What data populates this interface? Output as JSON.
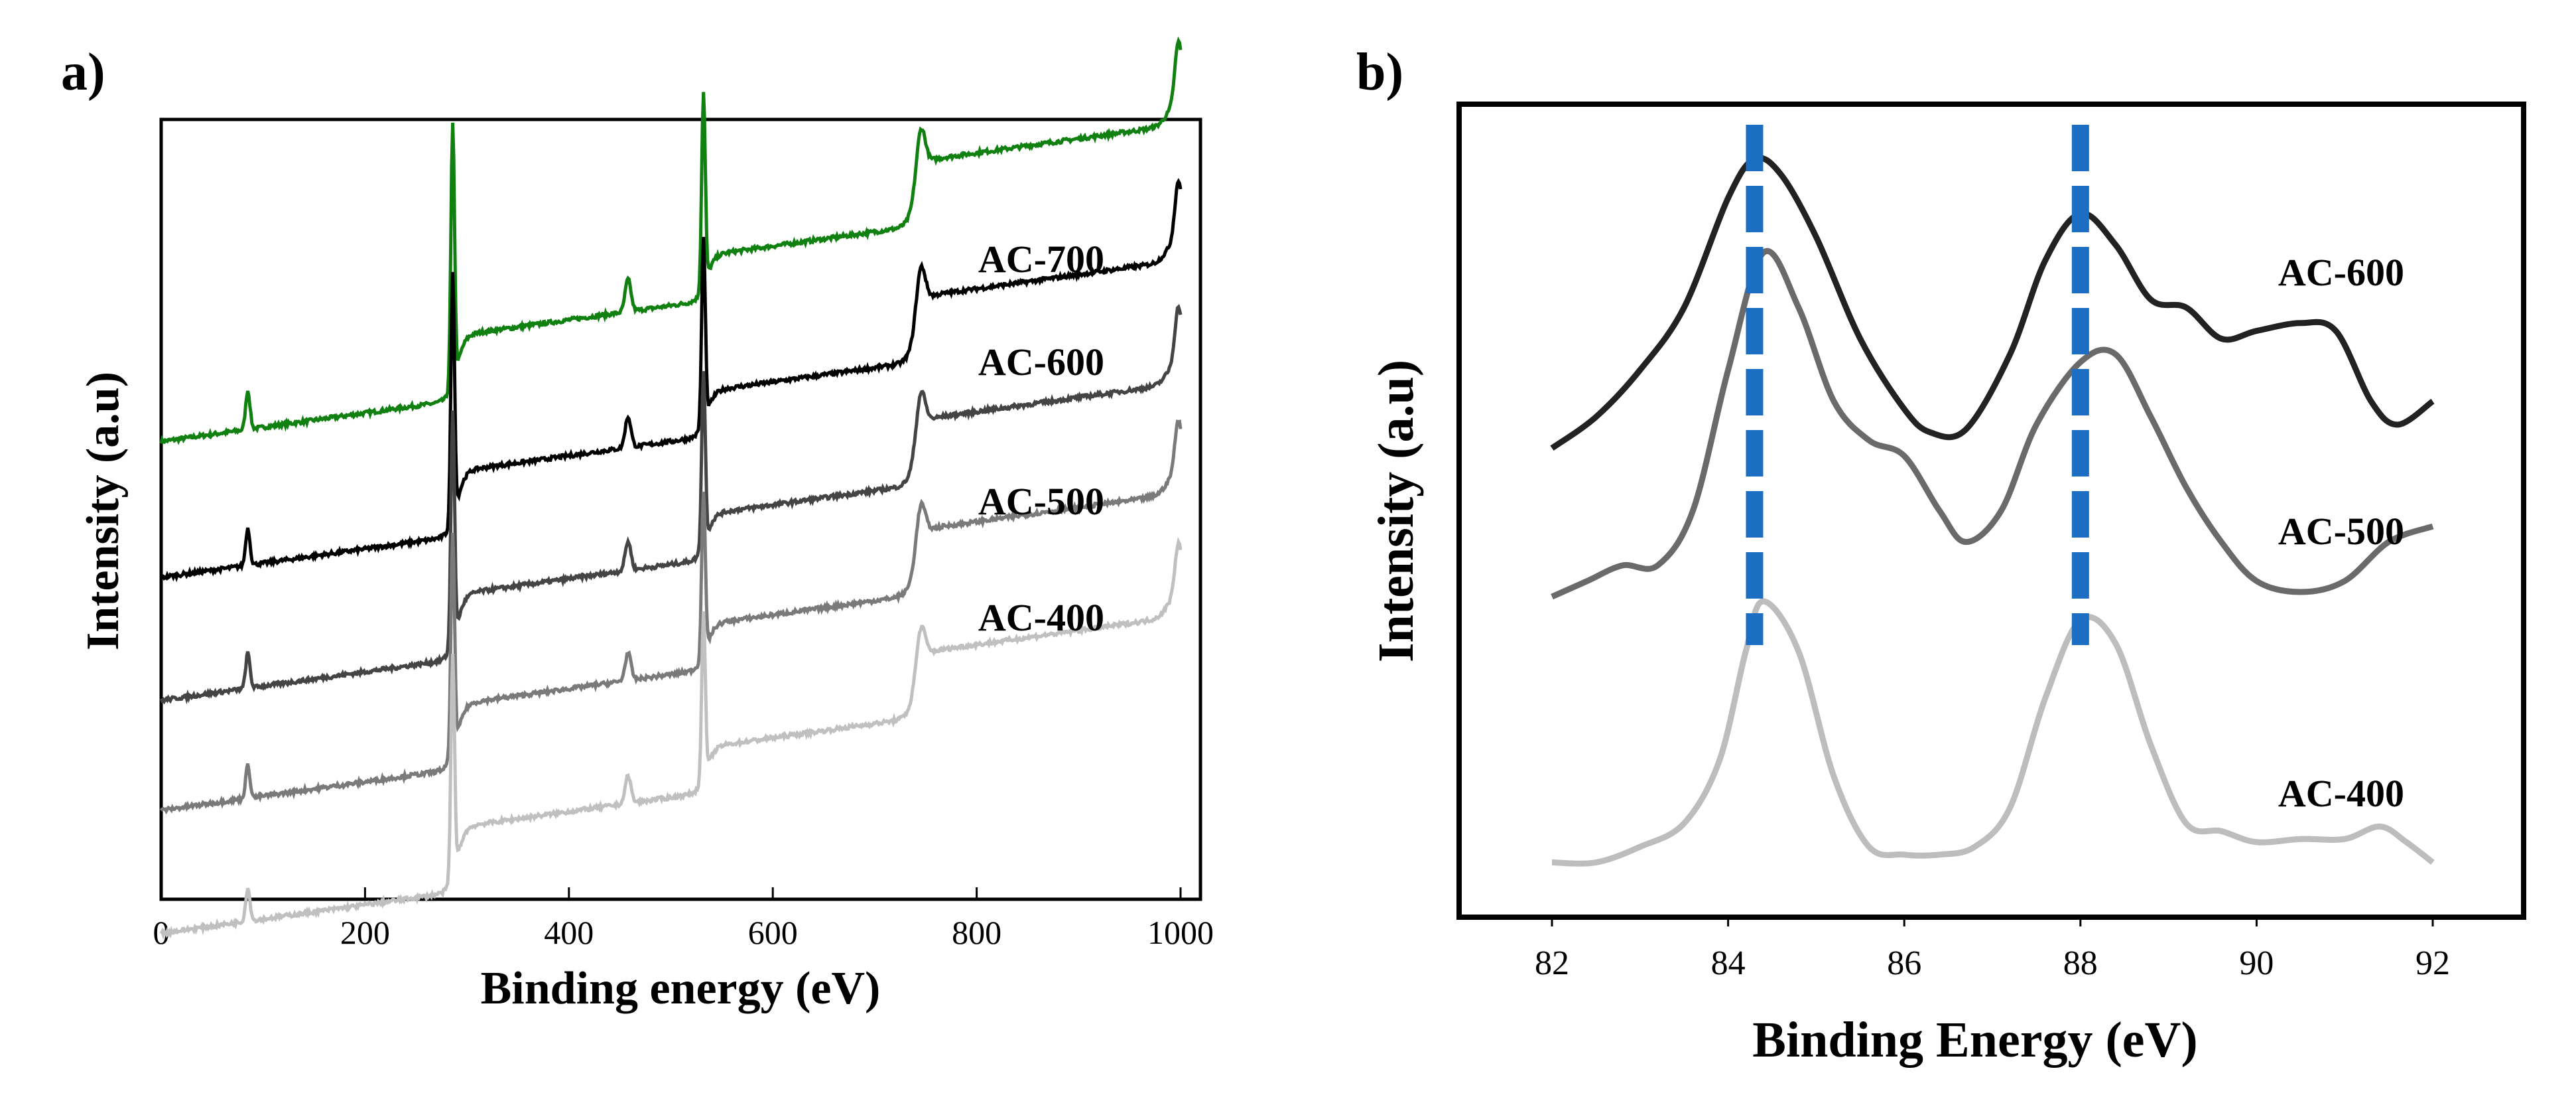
{
  "chart_data": [
    {
      "panel_label": "a)",
      "type": "line",
      "xlabel": "Binding energy (eV)",
      "ylabel": "Intensity (a.u)",
      "xlim": [
        0,
        1000
      ],
      "xticks": [
        "0",
        "200",
        "400",
        "600",
        "800",
        "1000"
      ],
      "series": [
        {
          "name": "AC-700",
          "color": "#108010",
          "offset": 3.05,
          "scale": 1.0
        },
        {
          "name": "AC-600",
          "color": "#000000",
          "offset": 2.0,
          "scale": 0.95
        },
        {
          "name": "AC-500",
          "color": "#444444",
          "offset": 1.05,
          "scale": 0.9
        },
        {
          "name": "AC-400",
          "color": "#7a7a7a",
          "offset": 0.2,
          "scale": 0.85
        },
        {
          "name": "",
          "color": "#c0c0c0",
          "offset": -0.75,
          "scale": 0.85
        }
      ],
      "peaks_eV": [
        {
          "x": 85,
          "h": 0.3,
          "w": 3
        },
        {
          "x": 286,
          "h": 2.0,
          "w": 2.5
        },
        {
          "x": 458,
          "h": 0.25,
          "w": 4
        },
        {
          "x": 532,
          "h": 1.5,
          "w": 2.5
        },
        {
          "x": 745,
          "h": 0.35,
          "w": 6
        },
        {
          "x": 998,
          "h": 0.5,
          "w": 5
        }
      ],
      "steps_eV": [
        {
          "x": 290,
          "h": 0.5
        },
        {
          "x": 535,
          "h": 0.35
        },
        {
          "x": 740,
          "h": 0.5
        },
        {
          "x": 985,
          "h": 0.15
        }
      ]
    },
    {
      "panel_label": "b)",
      "type": "line",
      "xlabel": "Binding Energy (eV)",
      "ylabel": "Intensity (a.u)",
      "xlim": [
        81,
        93
      ],
      "xticks": [
        "82",
        "84",
        "86",
        "88",
        "90",
        "92"
      ],
      "xtick_values": [
        82,
        84,
        86,
        88,
        90,
        92
      ],
      "series": [
        {
          "name": "AC-600",
          "color": "#222222",
          "x": [
            82,
            82.5,
            83,
            83.5,
            84,
            84.3,
            84.6,
            85,
            85.5,
            86,
            86.3,
            86.7,
            87.2,
            87.6,
            88,
            88.4,
            88.8,
            89.2,
            89.6,
            90.0,
            90.5,
            90.9,
            91.3,
            91.6,
            92
          ],
          "y": [
            1.7,
            1.9,
            2.2,
            2.6,
            3.3,
            3.55,
            3.45,
            3.05,
            2.4,
            1.95,
            1.8,
            1.82,
            2.3,
            2.9,
            3.2,
            3.0,
            2.65,
            2.6,
            2.4,
            2.45,
            2.5,
            2.45,
            2.0,
            1.85,
            2.0
          ]
        },
        {
          "name": "AC-500",
          "color": "#6a6a6a",
          "x": [
            82,
            82.4,
            82.8,
            83.2,
            83.6,
            84,
            84.4,
            84.8,
            85.2,
            85.6,
            86,
            86.4,
            86.7,
            87.1,
            87.5,
            88,
            88.4,
            88.8,
            89.2,
            89.6,
            90.0,
            90.5,
            91,
            91.5,
            92
          ],
          "y": [
            0.75,
            0.85,
            0.95,
            0.95,
            1.3,
            2.2,
            2.95,
            2.6,
            2.0,
            1.75,
            1.65,
            1.3,
            1.1,
            1.3,
            1.85,
            2.25,
            2.3,
            1.9,
            1.45,
            1.1,
            0.85,
            0.78,
            0.85,
            1.1,
            1.2
          ]
        },
        {
          "name": "AC-400",
          "color": "#bdbdbd",
          "x": [
            82,
            82.5,
            83,
            83.5,
            83.9,
            84.2,
            84.4,
            84.8,
            85.2,
            85.6,
            86,
            86.4,
            86.8,
            87.2,
            87.6,
            88,
            88.4,
            88.8,
            89.2,
            89.6,
            90,
            90.5,
            91,
            91.4,
            91.7,
            92
          ],
          "y": [
            -0.95,
            -0.95,
            -0.85,
            -0.7,
            -0.3,
            0.4,
            0.72,
            0.4,
            -0.4,
            -0.85,
            -0.9,
            -0.9,
            -0.85,
            -0.6,
            0.1,
            0.6,
            0.45,
            -0.2,
            -0.7,
            -0.75,
            -0.82,
            -0.8,
            -0.8,
            -0.72,
            -0.82,
            -0.95
          ]
        }
      ],
      "ylim": [
        -1.3,
        3.9
      ],
      "dashed_lines_eV": [
        84.3,
        88.0
      ],
      "dashed_color": "#1b6ec2"
    }
  ]
}
